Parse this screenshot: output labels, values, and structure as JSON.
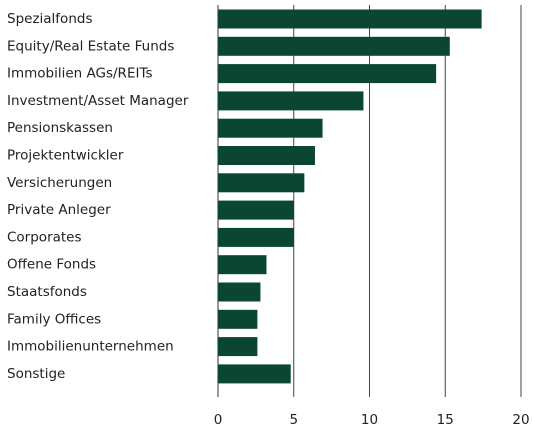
{
  "chart_data": {
    "type": "hbar",
    "categories": [
      "Spezialfonds",
      "Equity/Real Estate Funds",
      "Immobilien AGs/REITs",
      "Investment/Asset Manager",
      "Pensionskassen",
      "Projektentwickler",
      "Versicherungen",
      "Private Anleger",
      "Corporates",
      "Offene Fonds",
      "Staatsfonds",
      "Family Offices",
      "Immobilienunternehmen",
      "Sonstige"
    ],
    "values": [
      17.4,
      15.3,
      14.4,
      9.6,
      6.9,
      6.4,
      5.7,
      5.0,
      5.0,
      3.2,
      2.8,
      2.6,
      2.6,
      4.8
    ],
    "color": "#0a4632",
    "xlim": [
      0,
      20
    ],
    "xticks": [
      0,
      5,
      10,
      15,
      20
    ],
    "grid": true
  }
}
